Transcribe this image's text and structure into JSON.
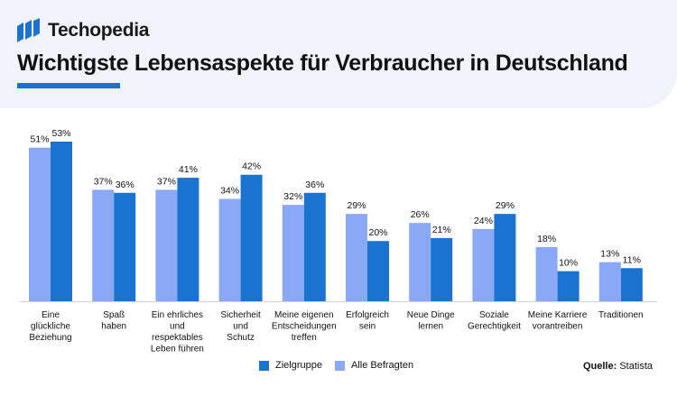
{
  "header": {
    "brand": "Techopedia",
    "logo_icon": "techopedia-logo-icon",
    "title": "Wichtigste Lebensaspekte für Verbraucher in Deutschland"
  },
  "colors": {
    "zielgruppe": "#1a73d1",
    "alle": "#8aa8f5",
    "header_bg": "#f1f3fb",
    "accent": "#1a73d1"
  },
  "chart_data": {
    "type": "bar",
    "title": "Wichtigste Lebensaspekte für Verbraucher in Deutschland",
    "categories": [
      [
        "Eine",
        "glückliche",
        "Beziehung"
      ],
      [
        "Spaß",
        "haben"
      ],
      [
        "Ein ehrliches",
        "und",
        "respektables",
        "Leben führen"
      ],
      [
        "Sicherheit",
        "und",
        "Schutz"
      ],
      [
        "Meine eigenen",
        "Entscheidungen",
        "treffen"
      ],
      [
        "Erfolgreich",
        "sein"
      ],
      [
        "Neue Dinge",
        "lernen"
      ],
      [
        "Soziale",
        "Gerechtigkeit"
      ],
      [
        "Meine Karriere",
        "vorantreiben"
      ],
      [
        "Traditionen"
      ]
    ],
    "series": [
      {
        "name": "Alle Befragten",
        "values": [
          51,
          37,
          37,
          34,
          32,
          29,
          26,
          24,
          18,
          13
        ],
        "labels": [
          "51%",
          "37%",
          "37%",
          "34%",
          "32%",
          "29%",
          "26%",
          "24%",
          "18%",
          "13%"
        ]
      },
      {
        "name": "Zielgruppe",
        "values": [
          53,
          36,
          41,
          42,
          36,
          20,
          21,
          29,
          10,
          11
        ],
        "labels": [
          "53%",
          "36%",
          "41%",
          "42%",
          "36%",
          "20%",
          "21%",
          "29%",
          "10%",
          "11%"
        ]
      }
    ],
    "unit": "%",
    "ylim": [
      0,
      53
    ],
    "grid": false,
    "legend_position": "bottom"
  },
  "legend": {
    "zielgruppe": "Zielgruppe",
    "alle": "Alle Befragten"
  },
  "source": {
    "label": "Quelle:",
    "value": "Statista"
  }
}
